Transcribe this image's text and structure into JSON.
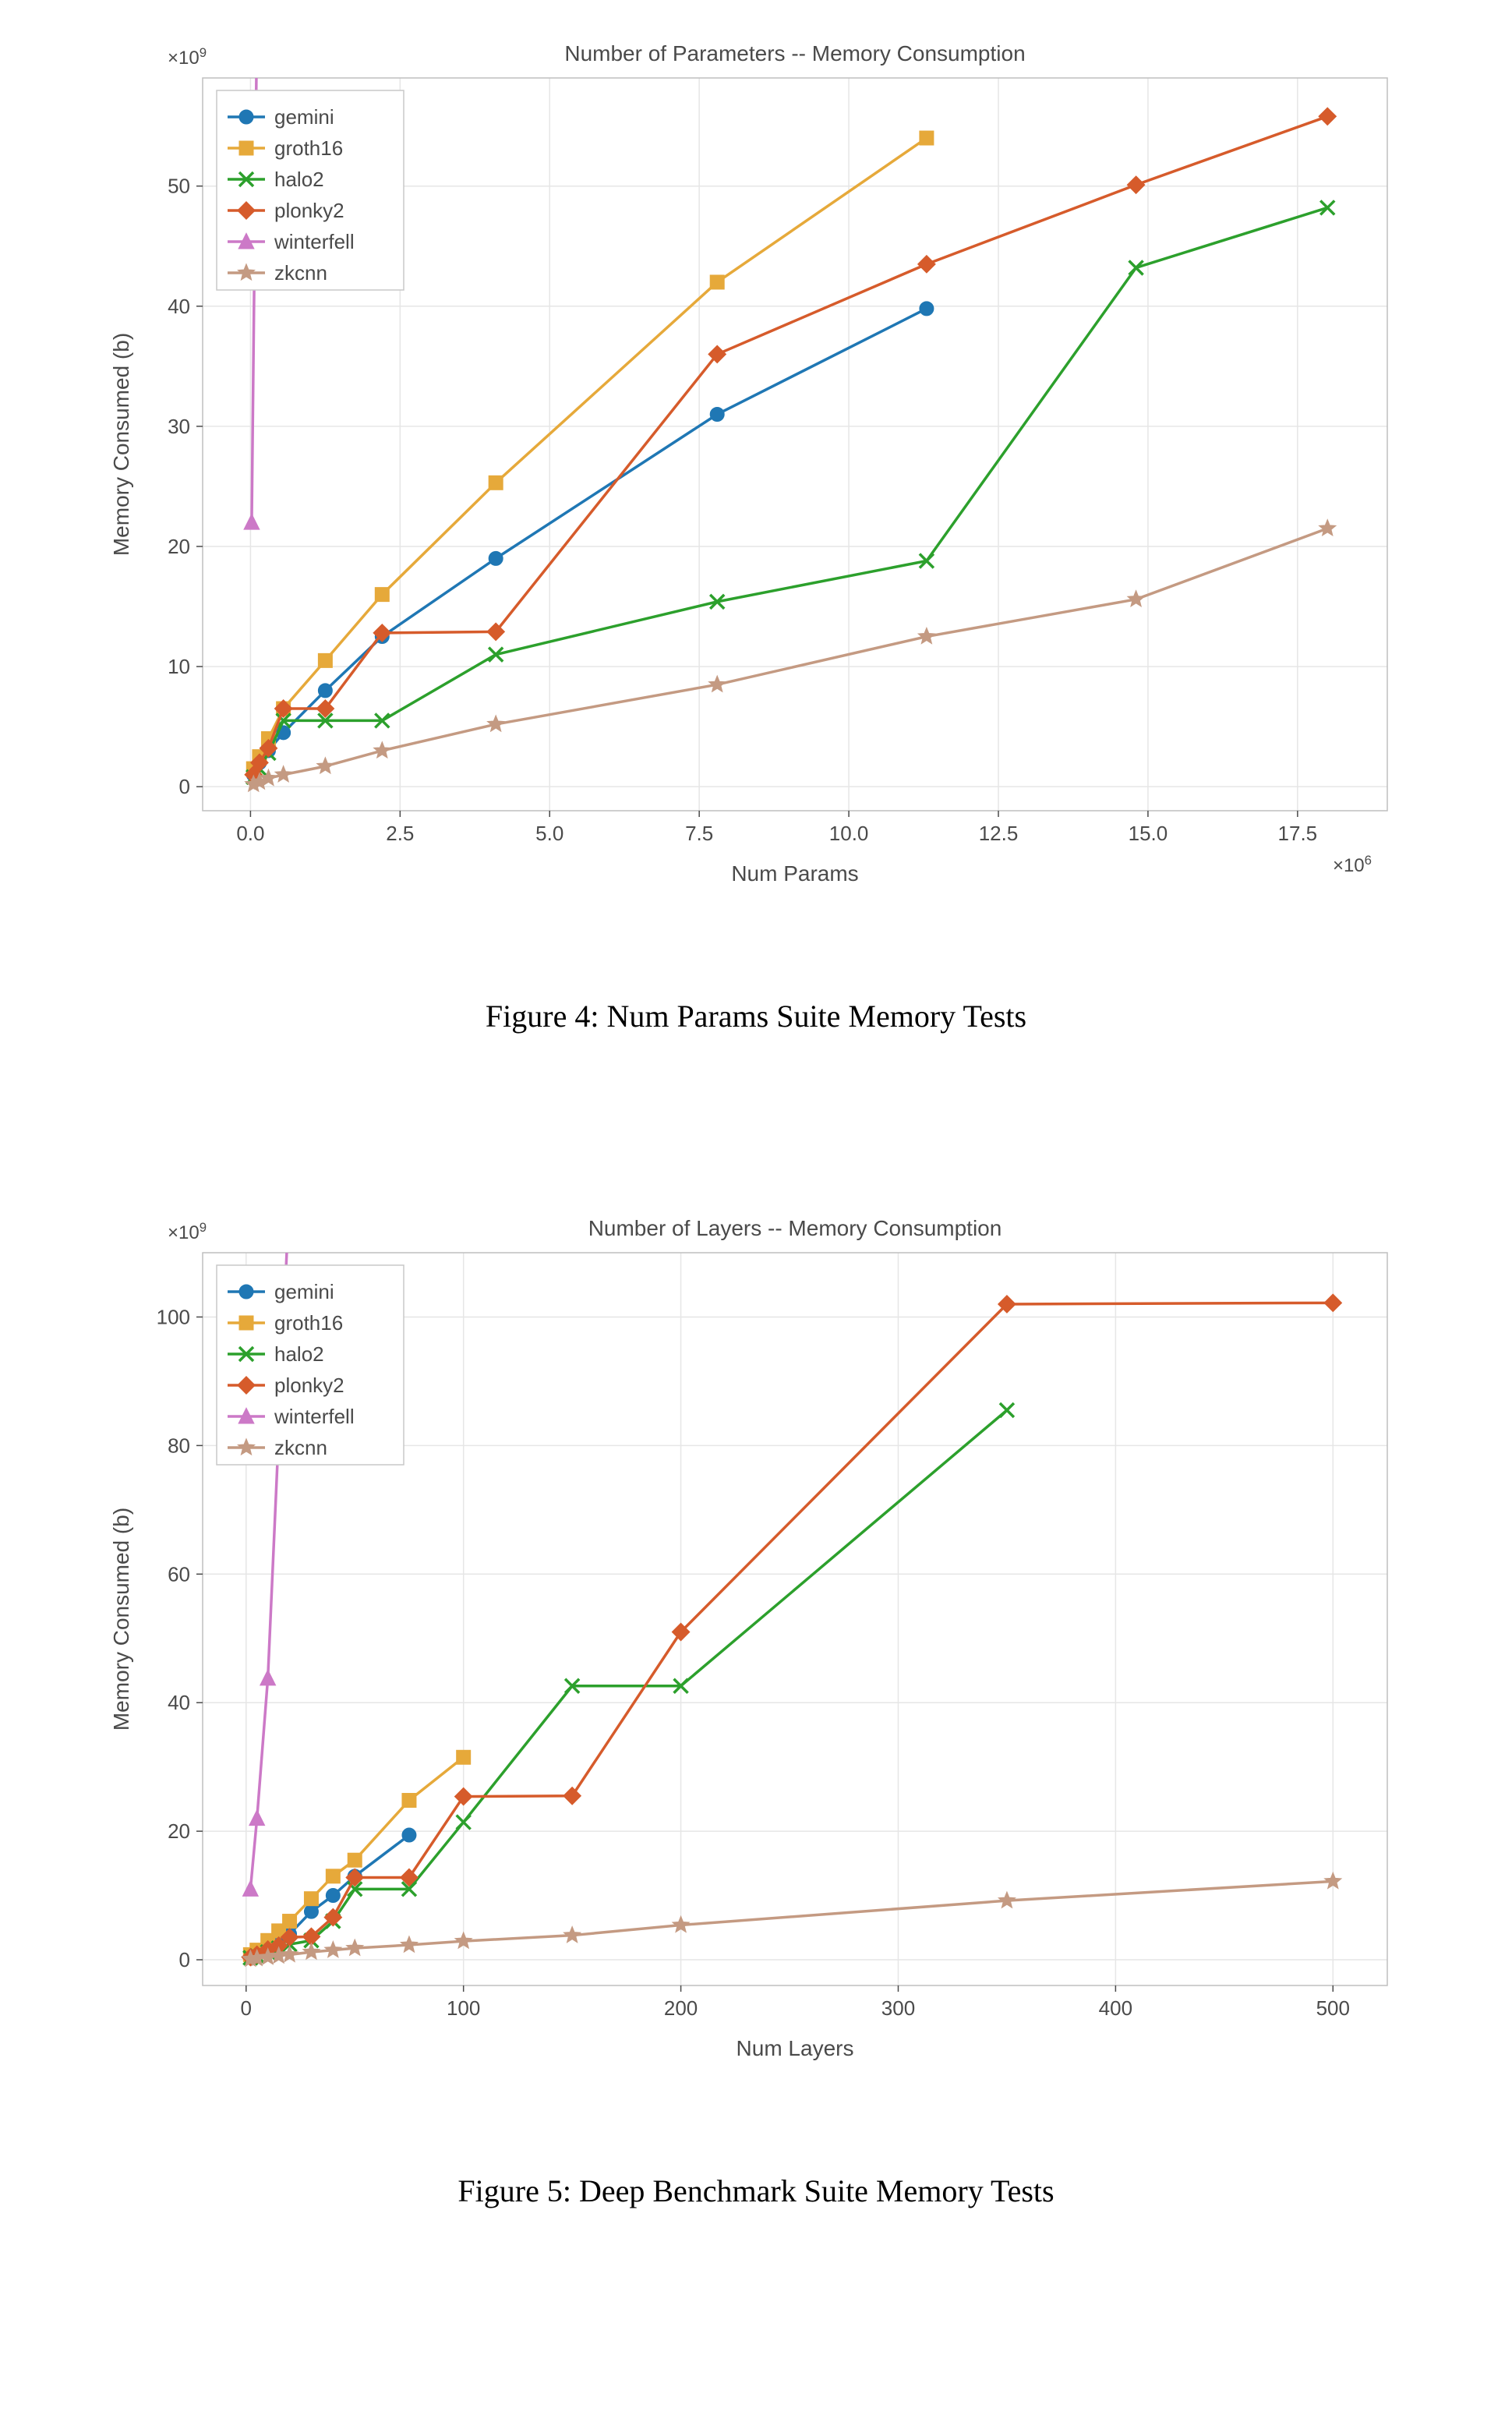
{
  "colors": {
    "gemini": "#1f77b4",
    "groth16": "#e6a93a",
    "halo2": "#2ca02c",
    "plonky2": "#d65b2b",
    "winterfell": "#cc79c7",
    "zkcnn": "#c49a82",
    "axis": "#4a4a4a",
    "tick_label": "#4a4a4a",
    "grid": "#e6e6e6",
    "spine": "#bfbfbf",
    "title": "#4a4a4a",
    "legend_border": "#c9c9c9",
    "legend_bg": "#ffffff",
    "background": "#ffffff"
  },
  "markers": {
    "gemini": "circle",
    "groth16": "square",
    "halo2": "x",
    "plonky2": "diamond",
    "winterfell": "triangle",
    "zkcnn": "star"
  },
  "style": {
    "line_width": 3.5,
    "marker_size": 9,
    "tick_fontsize": 26,
    "axis_label_fontsize": 28,
    "title_fontsize": 28,
    "legend_fontsize": 26,
    "caption_fontsize": 40,
    "offset_fontsize": 24
  },
  "legend_order": [
    "gemini",
    "groth16",
    "halo2",
    "plonky2",
    "winterfell",
    "zkcnn"
  ],
  "chart_a": {
    "type": "line",
    "title": "Number of Parameters -- Memory Consumption",
    "xlabel": "Num Params",
    "ylabel": "Memory Consumed (b)",
    "x_offset_text": "×10",
    "x_offset_exp": "6",
    "y_offset_text": "×10",
    "y_offset_exp": "9",
    "xlim": [
      -0.8,
      19.0
    ],
    "ylim": [
      -2,
      59
    ],
    "xticks": [
      0.0,
      2.5,
      5.0,
      7.5,
      10.0,
      12.5,
      15.0,
      17.5
    ],
    "xtick_labels": [
      "0.0",
      "2.5",
      "5.0",
      "7.5",
      "10.0",
      "12.5",
      "15.0",
      "17.5"
    ],
    "yticks": [
      0,
      10,
      20,
      30,
      40,
      50
    ],
    "ytick_labels": [
      "0",
      "10",
      "20",
      "30",
      "40",
      "50"
    ],
    "series": {
      "gemini": [
        {
          "x": 0.05,
          "y": 1.0
        },
        {
          "x": 0.15,
          "y": 2.0
        },
        {
          "x": 0.3,
          "y": 3.0
        },
        {
          "x": 0.55,
          "y": 4.5
        },
        {
          "x": 1.25,
          "y": 8.0
        },
        {
          "x": 2.2,
          "y": 12.5
        },
        {
          "x": 4.1,
          "y": 19.0
        },
        {
          "x": 7.8,
          "y": 31.0
        },
        {
          "x": 11.3,
          "y": 39.8
        }
      ],
      "groth16": [
        {
          "x": 0.05,
          "y": 1.5
        },
        {
          "x": 0.15,
          "y": 2.5
        },
        {
          "x": 0.3,
          "y": 4.0
        },
        {
          "x": 0.55,
          "y": 6.5
        },
        {
          "x": 1.25,
          "y": 10.5
        },
        {
          "x": 2.2,
          "y": 16.0
        },
        {
          "x": 4.1,
          "y": 25.3
        },
        {
          "x": 7.8,
          "y": 42.0
        },
        {
          "x": 11.3,
          "y": 54.0
        }
      ],
      "halo2": [
        {
          "x": 0.05,
          "y": 0.8
        },
        {
          "x": 0.15,
          "y": 1.5
        },
        {
          "x": 0.3,
          "y": 2.8
        },
        {
          "x": 0.55,
          "y": 5.5
        },
        {
          "x": 1.25,
          "y": 5.5
        },
        {
          "x": 2.2,
          "y": 5.5
        },
        {
          "x": 4.1,
          "y": 11.0
        },
        {
          "x": 7.8,
          "y": 15.4
        },
        {
          "x": 11.3,
          "y": 18.8
        },
        {
          "x": 14.8,
          "y": 43.2
        },
        {
          "x": 18.0,
          "y": 48.2
        }
      ],
      "plonky2": [
        {
          "x": 0.05,
          "y": 1.0
        },
        {
          "x": 0.15,
          "y": 2.0
        },
        {
          "x": 0.3,
          "y": 3.2
        },
        {
          "x": 0.55,
          "y": 6.5
        },
        {
          "x": 1.25,
          "y": 6.5
        },
        {
          "x": 2.2,
          "y": 12.8
        },
        {
          "x": 4.1,
          "y": 12.9
        },
        {
          "x": 7.8,
          "y": 36.0
        },
        {
          "x": 11.3,
          "y": 43.5
        },
        {
          "x": 14.8,
          "y": 50.1
        },
        {
          "x": 18.0,
          "y": 55.8
        }
      ],
      "winterfell": [
        {
          "x": 0.02,
          "y": 22.0
        },
        {
          "x": 0.1,
          "y": 60.0
        }
      ],
      "zkcnn": [
        {
          "x": 0.05,
          "y": 0.2
        },
        {
          "x": 0.15,
          "y": 0.4
        },
        {
          "x": 0.3,
          "y": 0.7
        },
        {
          "x": 0.55,
          "y": 1.0
        },
        {
          "x": 1.25,
          "y": 1.7
        },
        {
          "x": 2.2,
          "y": 3.0
        },
        {
          "x": 4.1,
          "y": 5.2
        },
        {
          "x": 7.8,
          "y": 8.5
        },
        {
          "x": 11.3,
          "y": 12.5
        },
        {
          "x": 14.8,
          "y": 15.6
        },
        {
          "x": 18.0,
          "y": 21.5
        }
      ]
    },
    "caption": "Figure 4: Num Params Suite Memory Tests"
  },
  "chart_b": {
    "type": "line",
    "title": "Number of Layers -- Memory Consumption",
    "xlabel": "Num Layers",
    "ylabel": "Memory Consumed (b)",
    "x_offset_text": "",
    "x_offset_exp": "",
    "y_offset_text": "×10",
    "y_offset_exp": "9",
    "xlim": [
      -20,
      525
    ],
    "ylim": [
      -4,
      110
    ],
    "xticks": [
      0,
      100,
      200,
      300,
      400,
      500
    ],
    "xtick_labels": [
      "0",
      "100",
      "200",
      "300",
      "400",
      "500"
    ],
    "yticks": [
      0,
      20,
      40,
      60,
      80,
      100
    ],
    "ytick_labels": [
      "0",
      "20",
      "40",
      "60",
      "80",
      "100"
    ],
    "series": {
      "gemini": [
        {
          "x": 2,
          "y": 0.5
        },
        {
          "x": 5,
          "y": 1.0
        },
        {
          "x": 10,
          "y": 2.0
        },
        {
          "x": 15,
          "y": 3.0
        },
        {
          "x": 20,
          "y": 4.0
        },
        {
          "x": 30,
          "y": 7.5
        },
        {
          "x": 40,
          "y": 10.0
        },
        {
          "x": 50,
          "y": 13.0
        },
        {
          "x": 75,
          "y": 19.4
        }
      ],
      "groth16": [
        {
          "x": 2,
          "y": 0.8
        },
        {
          "x": 5,
          "y": 1.5
        },
        {
          "x": 10,
          "y": 3.0
        },
        {
          "x": 15,
          "y": 4.5
        },
        {
          "x": 20,
          "y": 6.0
        },
        {
          "x": 30,
          "y": 9.5
        },
        {
          "x": 40,
          "y": 13.0
        },
        {
          "x": 50,
          "y": 15.5
        },
        {
          "x": 75,
          "y": 24.8
        },
        {
          "x": 100,
          "y": 31.5
        }
      ],
      "halo2": [
        {
          "x": 2,
          "y": 0.3
        },
        {
          "x": 5,
          "y": 0.6
        },
        {
          "x": 10,
          "y": 1.2
        },
        {
          "x": 15,
          "y": 1.8
        },
        {
          "x": 20,
          "y": 2.4
        },
        {
          "x": 30,
          "y": 3.0
        },
        {
          "x": 40,
          "y": 6.0
        },
        {
          "x": 50,
          "y": 11.0
        },
        {
          "x": 75,
          "y": 11.0
        },
        {
          "x": 100,
          "y": 21.4
        },
        {
          "x": 150,
          "y": 42.6
        },
        {
          "x": 200,
          "y": 42.6
        },
        {
          "x": 350,
          "y": 85.5
        }
      ],
      "plonky2": [
        {
          "x": 2,
          "y": 0.4
        },
        {
          "x": 5,
          "y": 0.8
        },
        {
          "x": 10,
          "y": 1.6
        },
        {
          "x": 15,
          "y": 2.2
        },
        {
          "x": 20,
          "y": 3.5
        },
        {
          "x": 30,
          "y": 3.6
        },
        {
          "x": 40,
          "y": 6.6
        },
        {
          "x": 50,
          "y": 12.8
        },
        {
          "x": 75,
          "y": 12.8
        },
        {
          "x": 100,
          "y": 25.4
        },
        {
          "x": 150,
          "y": 25.5
        },
        {
          "x": 200,
          "y": 51.0
        },
        {
          "x": 350,
          "y": 102.0
        },
        {
          "x": 500,
          "y": 102.2
        }
      ],
      "winterfell": [
        {
          "x": 2,
          "y": 11.0
        },
        {
          "x": 5,
          "y": 22.0
        },
        {
          "x": 10,
          "y": 43.8
        },
        {
          "x": 20,
          "y": 120.0
        }
      ],
      "zkcnn": [
        {
          "x": 2,
          "y": 0.1
        },
        {
          "x": 5,
          "y": 0.2
        },
        {
          "x": 10,
          "y": 0.4
        },
        {
          "x": 15,
          "y": 0.6
        },
        {
          "x": 20,
          "y": 0.8
        },
        {
          "x": 30,
          "y": 1.2
        },
        {
          "x": 40,
          "y": 1.5
        },
        {
          "x": 50,
          "y": 1.8
        },
        {
          "x": 75,
          "y": 2.3
        },
        {
          "x": 100,
          "y": 2.9
        },
        {
          "x": 150,
          "y": 3.8
        },
        {
          "x": 200,
          "y": 5.4
        },
        {
          "x": 350,
          "y": 9.2
        },
        {
          "x": 500,
          "y": 12.2
        }
      ]
    },
    "caption": "Figure 5: Deep Benchmark Suite Memory Tests"
  }
}
